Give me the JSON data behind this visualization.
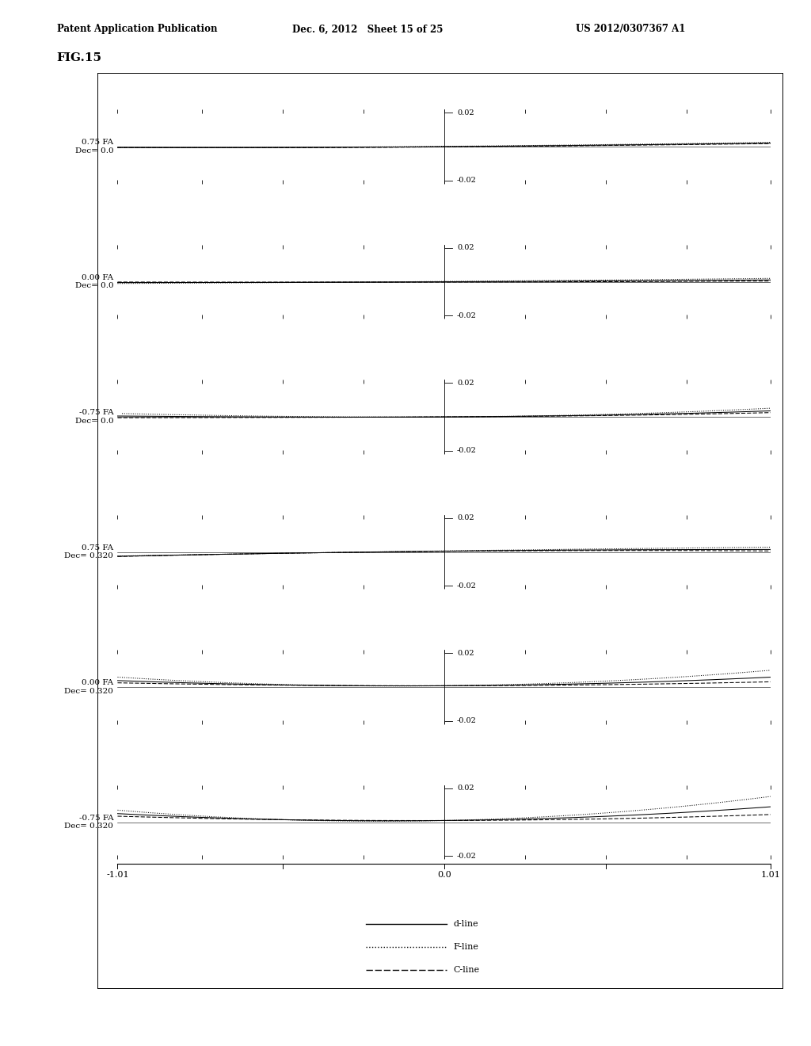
{
  "header_left": "Patent Application Publication",
  "header_center": "Dec. 6, 2012   Sheet 15 of 25",
  "header_right": "US 2012/0307367 A1",
  "fig_label": "FIG.15",
  "subplots": [
    {
      "label_fa": "0.75 FA",
      "label_dec": "Dec= 0.0",
      "fa": 0.75,
      "dec": 0.0
    },
    {
      "label_fa": "0.00 FA",
      "label_dec": "Dec= 0.0",
      "fa": 0.0,
      "dec": 0.0
    },
    {
      "label_fa": "-0.75 FA",
      "label_dec": "Dec= 0.0",
      "fa": -0.75,
      "dec": 0.0
    },
    {
      "label_fa": "0.75 FA",
      "label_dec": "Dec= 0.320",
      "fa": 0.75,
      "dec": 0.32
    },
    {
      "label_fa": "0.00 FA",
      "label_dec": "Dec= 0.320",
      "fa": 0.0,
      "dec": 0.32
    },
    {
      "label_fa": "-0.75 FA",
      "label_dec": "Dec= 0.320",
      "fa": -0.75,
      "dec": 0.32
    }
  ],
  "xlim": [
    -1.01,
    1.01
  ],
  "ylim": [
    -0.02,
    0.02
  ],
  "legend_entries": [
    "d-line",
    "F-line",
    "C-line"
  ]
}
